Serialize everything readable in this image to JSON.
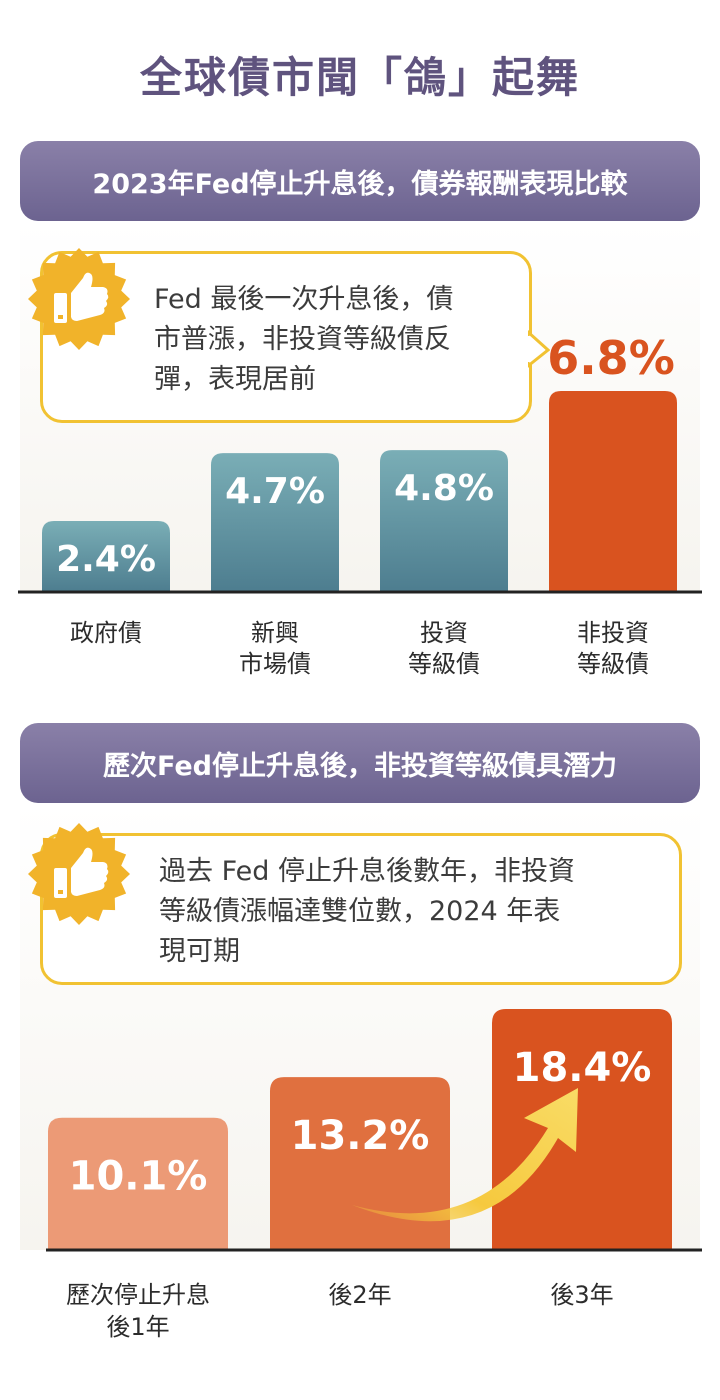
{
  "title": "全球債市聞「鴿」起舞",
  "colors": {
    "teal_top": "#7aaeb6",
    "teal_bottom": "#4d7d8f",
    "orange_dark": "#d9531f",
    "orange_mid": "#e0703f",
    "orange_light": "#ec9a76",
    "purple": "#6c6390",
    "yellow": "#f1c232"
  },
  "section1": {
    "heading": "2023年Fed停止升息後，債券報酬表現比較",
    "icon": "thumbs-up-icon",
    "callout_lines": [
      "Fed 最後一次升息後，債",
      "市普漲，非投資等級債反",
      "彈，表現居前"
    ],
    "highlight_value": "6.8%"
  },
  "section2": {
    "heading": "歷次Fed停止升息後，非投資等級債具潛力",
    "icon": "thumbs-up-icon",
    "callout_lines": [
      "過去 Fed 停止升息後數年，非投資",
      "等級債漲幅達雙位數，2024 年表",
      "現可期"
    ]
  },
  "chart_data": [
    {
      "type": "bar",
      "categories": [
        [
          "政府債"
        ],
        [
          "新興",
          "市場債"
        ],
        [
          "投資",
          "等級債"
        ],
        [
          "非投資",
          "等級債"
        ]
      ],
      "values": [
        2.4,
        4.7,
        4.8,
        6.8
      ],
      "value_labels": [
        "2.4%",
        "4.7%",
        "4.8%",
        "6.8%"
      ],
      "highlight_index": 3
    },
    {
      "type": "bar",
      "categories": [
        [
          "歷次停止升息",
          "後1年"
        ],
        [
          "後2年"
        ],
        [
          "後3年"
        ]
      ],
      "values": [
        10.1,
        13.2,
        18.4
      ],
      "value_labels": [
        "10.1%",
        "13.2%",
        "18.4%"
      ],
      "annotation": "upward-arrow"
    }
  ]
}
